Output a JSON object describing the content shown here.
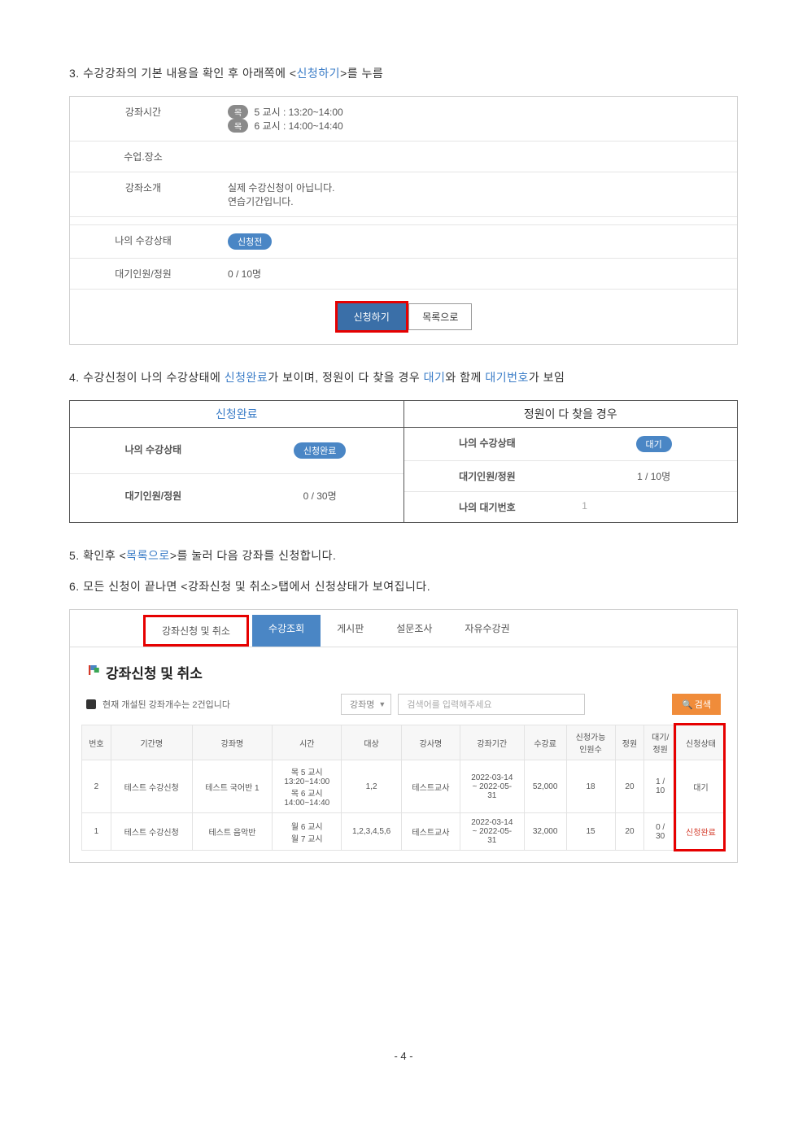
{
  "steps": {
    "s3_prefix": "3. 수강강좌의 기본 내용을 확인 후 아래쪽에 <",
    "s3_highlight": "신청하기",
    "s3_suffix": ">를 누름",
    "s4_prefix": "4. 수강신청이 나의 수강상태에 ",
    "s4_h1": "신청완료",
    "s4_mid": "가 보이며, 정원이 다 찾을 경우 ",
    "s4_h2": "대기",
    "s4_mid2": "와 함께 ",
    "s4_h3": "대기번호",
    "s4_suffix": "가 보임",
    "s5_prefix": "5. 확인후  <",
    "s5_highlight": "목록으로",
    "s5_suffix": ">를 눌러 다음 강좌를 신청합니다.",
    "s6": "6. 모든 신청이 끝나면 <강좌신청 및 취소>탭에서 신청상태가 보여집니다."
  },
  "panel": {
    "rows": {
      "r1_label": "강좌시간",
      "r1_day": "목",
      "r1_line1": " 5 교시 : 13:20~14:00",
      "r1_line2": " 6 교시 : 14:00~14:40",
      "r2_label": "수업.장소",
      "r3_label": "강좌소개",
      "r3_v1": "실제 수강신청이 아닙니다.",
      "r3_v2": "연습기간입니다.",
      "r4_label": "나의 수강상태",
      "r4_chip": "신청전",
      "r5_label": "대기인원/정원",
      "r5_val": "0 / 10명"
    },
    "buttons": {
      "apply": "신청하기",
      "list": "목록으로"
    }
  },
  "compare": {
    "left_header": "신청완료",
    "right_header": "정원이 다 찾을 경우",
    "left": {
      "l1": "나의 수강상태",
      "v1_chip": "신청완료",
      "l2": "대기인원/정원",
      "v2": "0 / 30명"
    },
    "right": {
      "l1": "나의 수강상태",
      "v1_chip": "대기",
      "l2": "대기인원/정원",
      "v2": "1 / 10명",
      "l3": "나의 대기번호",
      "v3": "1"
    }
  },
  "bottom": {
    "tabs": {
      "t1": "강좌신청 및 취소",
      "t2": "수강조회",
      "t3": "게시판",
      "t4": "설문조사",
      "t5": "자유수강권"
    },
    "title": "강좌신청 및 취소",
    "note": "현재 개설된 강좌개수는 2건입니다",
    "select_label": "강좌명",
    "search_placeholder": "검색어를 입력해주세요",
    "btn_search": "검색",
    "columns": [
      "번호",
      "기간명",
      "강좌명",
      "시간",
      "대상",
      "강사명",
      "강좌기간",
      "수강료",
      "신청가능\n인원수",
      "정원",
      "대기/\n정원",
      "신청상태"
    ],
    "rows": [
      {
        "no": "2",
        "period": "테스트 수강신청",
        "course": "테스트 국어반 1",
        "time": "목 5 교시\n13:20~14:00\n목 6 교시\n14:00~14:40",
        "target": "1,2",
        "teacher": "테스트교사",
        "range": "2022-03-14\n~ 2022-05-\n31",
        "fee": "52,000",
        "avail": "18",
        "cap": "20",
        "wait": "1 /\n10",
        "status": "대기"
      },
      {
        "no": "1",
        "period": "테스트 수강신청",
        "course": "테스트 음악반",
        "time": "월 6 교시\n월 7 교시",
        "target": "1,2,3,4,5,6",
        "teacher": "테스트교사",
        "range": "2022-03-14\n~ 2022-05-\n31",
        "fee": "32,000",
        "avail": "15",
        "cap": "20",
        "wait": "0 /\n30",
        "status": "신청완료"
      }
    ]
  },
  "page_num": "- 4 -"
}
